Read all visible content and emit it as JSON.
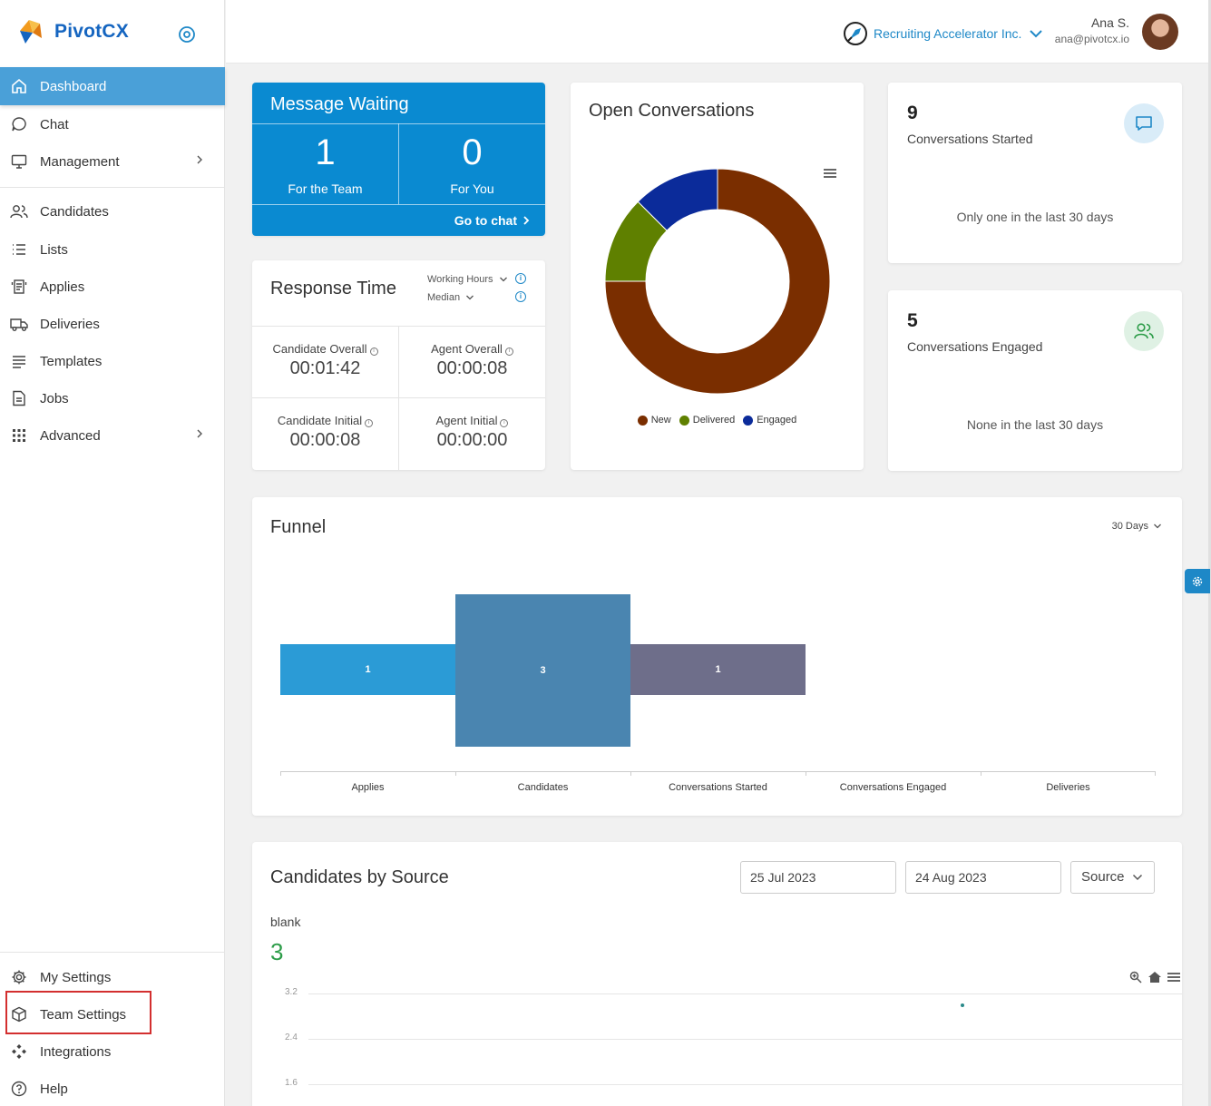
{
  "app": {
    "name": "PivotCX"
  },
  "sidebar": {
    "items": [
      {
        "label": "Dashboard",
        "icon": "home-icon"
      },
      {
        "label": "Chat",
        "icon": "chat-icon"
      },
      {
        "label": "Management",
        "icon": "monitor-icon"
      },
      {
        "label": "Candidates",
        "icon": "people-icon"
      },
      {
        "label": "Lists",
        "icon": "list-icon"
      },
      {
        "label": "Applies",
        "icon": "applies-icon"
      },
      {
        "label": "Deliveries",
        "icon": "truck-icon"
      },
      {
        "label": "Templates",
        "icon": "lines-icon"
      },
      {
        "label": "Jobs",
        "icon": "document-icon"
      },
      {
        "label": "Advanced",
        "icon": "grid-icon"
      }
    ],
    "bottom_items": [
      {
        "label": "My Settings",
        "icon": "gear-icon"
      },
      {
        "label": "Team Settings",
        "icon": "cube-icon"
      },
      {
        "label": "Integrations",
        "icon": "integrations-icon"
      },
      {
        "label": "Help",
        "icon": "help-icon"
      }
    ]
  },
  "header": {
    "org_name": "Recruiting Accelerator Inc.",
    "user_name": "Ana S.",
    "user_email": "ana@pivotcx.io"
  },
  "message_waiting": {
    "title": "Message Waiting",
    "team_count": "1",
    "team_label": "For the Team",
    "you_count": "0",
    "you_label": "For You",
    "link": "Go to chat"
  },
  "response_time": {
    "title": "Response Time",
    "filter1": "Working Hours",
    "filter2": "Median",
    "cells": [
      {
        "label": "Candidate Overall",
        "value": "00:01:42"
      },
      {
        "label": "Agent Overall",
        "value": "00:00:08"
      },
      {
        "label": "Candidate Initial",
        "value": "00:00:08"
      },
      {
        "label": "Agent Initial",
        "value": "00:00:00"
      }
    ]
  },
  "open_conversations": {
    "title": "Open Conversations",
    "legend": [
      {
        "label": "New",
        "color": "#7a2e00"
      },
      {
        "label": "Delivered",
        "color": "#5f8000"
      },
      {
        "label": "Engaged",
        "color": "#0b2b9a"
      }
    ]
  },
  "stats": [
    {
      "value": "9",
      "label": "Conversations Started",
      "sub": "Only one in the last 30 days",
      "icon": "chat-bubble-icon"
    },
    {
      "value": "5",
      "label": "Conversations Engaged",
      "sub": "None in the last 30 days",
      "icon": "people-icon"
    }
  ],
  "funnel": {
    "title": "Funnel",
    "period": "30 Days",
    "categories": [
      "Applies",
      "Candidates",
      "Conversations Started",
      "Conversations Engaged",
      "Deliveries"
    ]
  },
  "candidates_by_source": {
    "title": "Candidates by Source",
    "date_from": "25 Jul 2023",
    "date_to": "24 Aug 2023",
    "group_by": "Source",
    "source_name": "blank",
    "source_total": "3",
    "y_ticks": [
      "3.2",
      "2.4",
      "1.6"
    ]
  },
  "chart_data": [
    {
      "type": "pie",
      "title": "Open Conversations",
      "categories": [
        "New",
        "Delivered",
        "Engaged"
      ],
      "values": [
        6,
        1,
        1
      ],
      "colors": [
        "#7a2e00",
        "#5f8000",
        "#0b2b9a"
      ]
    },
    {
      "type": "bar",
      "title": "Funnel",
      "categories": [
        "Applies",
        "Candidates",
        "Conversations Started",
        "Conversations Engaged",
        "Deliveries"
      ],
      "values": [
        1,
        3,
        1,
        0,
        0
      ],
      "colors": [
        "#2b9bd6",
        "#4a85b0",
        "#6e6e8a"
      ]
    },
    {
      "type": "scatter",
      "title": "Candidates by Source",
      "ylim": [
        1.6,
        3.2
      ],
      "series": [
        {
          "name": "blank",
          "values": [
            3
          ]
        }
      ]
    }
  ]
}
